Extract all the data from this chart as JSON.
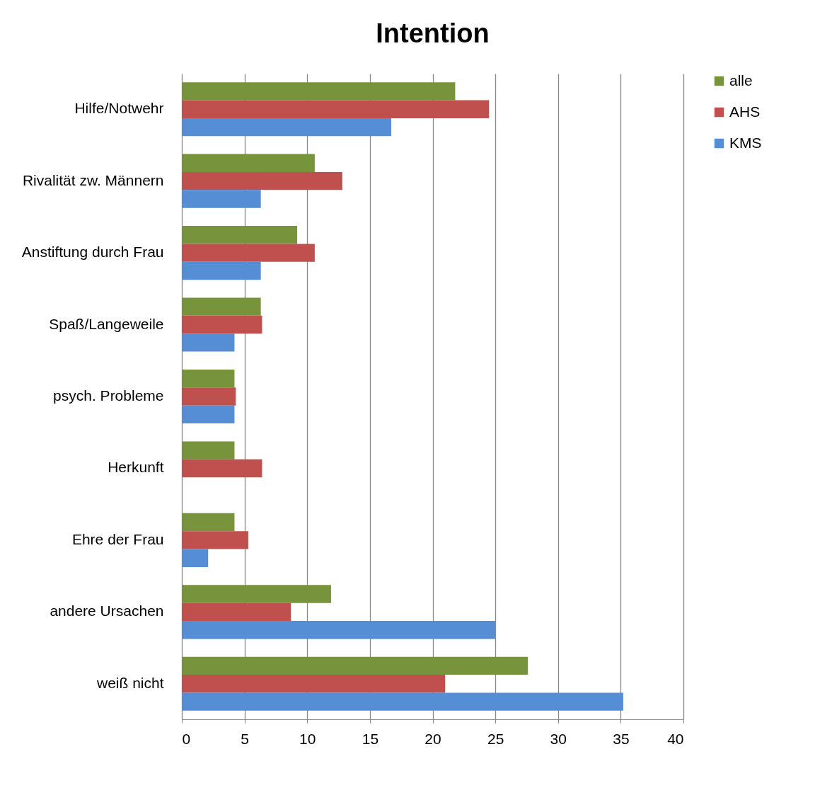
{
  "chart_data": {
    "type": "bar",
    "orientation": "horizontal",
    "title": "Intention",
    "categories": [
      "Hilfe/Notwehr",
      "Rivalität zw. Männern",
      "Anstiftung durch Frau",
      "Spaß/Langeweile",
      "psych. Probleme",
      "Herkunft",
      "Ehre der Frau",
      "andere Ursachen",
      "weiß nicht"
    ],
    "series": [
      {
        "name": "alle",
        "color": "#77933c",
        "values": [
          21.8,
          10.6,
          9.2,
          6.3,
          4.2,
          4.2,
          4.2,
          11.9,
          27.6
        ]
      },
      {
        "name": "AHS",
        "color": "#c0504d",
        "values": [
          24.5,
          12.8,
          10.6,
          6.4,
          4.3,
          6.4,
          5.3,
          8.7,
          21.0
        ]
      },
      {
        "name": "KMS",
        "color": "#558ed5",
        "values": [
          16.7,
          6.3,
          6.3,
          4.2,
          4.2,
          0,
          2.1,
          25.0,
          35.2
        ]
      }
    ],
    "xlim": [
      0,
      40
    ],
    "xticks": [
      0,
      5,
      10,
      15,
      20,
      25,
      30,
      35,
      40
    ],
    "grid": "x",
    "legend": "right"
  }
}
